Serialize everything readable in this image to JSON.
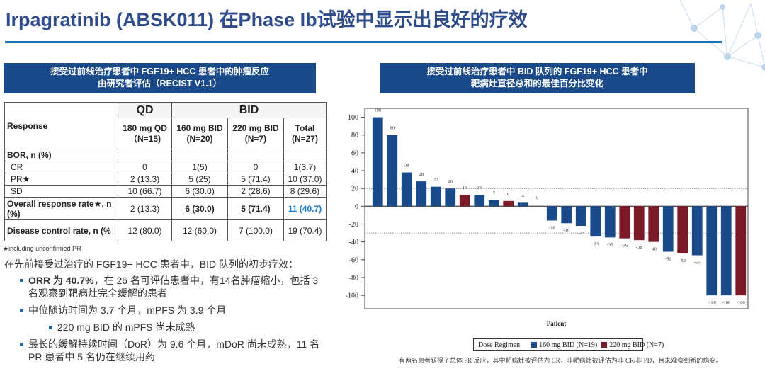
{
  "title": "Irpagratinib (ABSK011) 在Phase Ib试验中显示出良好的疗效",
  "left_panel": {
    "header_line1": "接受过前线治疗患者中 FGF19+ HCC 患者中的肿瘤反应",
    "header_line2": "由研究者评估（RECIST V1.1）",
    "table": {
      "response_label": "Response",
      "group_qd": "QD",
      "group_bid": "BID",
      "columns": [
        {
          "line1": "180 mg QD",
          "line2": "（N=15)"
        },
        {
          "line1": "160 mg BID",
          "line2": "(N=20)"
        },
        {
          "line1": "220 mg BID",
          "line2": "(N=7)"
        },
        {
          "line1": "Total",
          "line2": "(N=27)"
        }
      ],
      "bor_label": "BOR, n (%)",
      "rows": [
        {
          "label": "CR",
          "values": [
            "0",
            "1(5)",
            "0",
            "1(3.7)"
          ]
        },
        {
          "label": "PR★",
          "values": [
            "2 (13.3)",
            "5 (25)",
            "5 (71.4)",
            "10 (37.0)"
          ]
        },
        {
          "label": "SD",
          "values": [
            "10 (66.7)",
            "6  (30.0)",
            "2 (28.6)",
            "8 (29.6)"
          ]
        }
      ],
      "orr": {
        "label": "Overall response rate★, n (%)",
        "values": [
          "2 (13.3)",
          "6 (30.0)",
          "5 (71.4)",
          "11 (40.7)"
        ]
      },
      "dcr": {
        "label": "Disease control rate, n (%",
        "values": [
          "12 (80.0)",
          "12 (60.0)",
          "7 (100.0)",
          "19  (70.4)"
        ]
      }
    },
    "footnote": "★including  unconfirmed PR",
    "summary_lead": "在先前接受过治疗的 FGF19+ HCC 患者中，BID 队列的初步疗效：",
    "bullets": [
      {
        "bold": "ORR 为 40.7%",
        "text": "，在 26 名可评估患者中，有14名肿瘤缩小，包括 3 名观察到靶病灶完全缓解的患者"
      },
      {
        "bold": "",
        "text": "中位随访时间为 3.7 个月，mPFS 为 3.9 个月"
      },
      {
        "bold": "",
        "text": "220 mg BID 的 mPFS 尚未成熟"
      },
      {
        "bold": "",
        "text": "最长的缓解持续时间（DoR）为 9.6 个月，mDoR 尚未成熟，11 名PR 患者中 5 名仍在继续用药"
      }
    ]
  },
  "right_panel": {
    "header_line1": "接受过前线治疗患者中 BID 队列的 FGF19+ HCC 患者中",
    "header_line2": "靶病灶直径总和的最佳百分比变化",
    "legend_title": "Dose Regimen",
    "note": "有两名患者获得了总体 PR 反应，其中靶病灶被评估为 CR，非靶病灶被评估为非 CR/非 PD，且未观察到新的病变。"
  },
  "chart_data": {
    "type": "bar",
    "title": "接受过前线治疗患者中 BID 队列的 FGF19+ HCC 患者中 靶病灶直径总和的最佳百分比变化",
    "xlabel": "Patient",
    "ylabel": "",
    "ylim": [
      -115,
      110
    ],
    "yticks": [
      100,
      80,
      60,
      40,
      20,
      0,
      -20,
      -40,
      -60,
      -80,
      -100
    ],
    "reference_lines": [
      20,
      -30
    ],
    "legend": "bottom",
    "series": [
      {
        "name": "160 mg BID (N=19)",
        "color": "#1b4a8a"
      },
      {
        "name": "220 mg BID (N=7)",
        "color": "#7a1a28"
      }
    ],
    "values": [
      100,
      80,
      38,
      28,
      22,
      20,
      13,
      13,
      7,
      6,
      4,
      0,
      -16,
      -19,
      -22,
      -34,
      -35,
      -36,
      -38,
      -40,
      -51,
      -53,
      -55,
      -100,
      -100,
      -100
    ],
    "groups": [
      "160 mg BID (N=19)",
      "160 mg BID (N=19)",
      "160 mg BID (N=19)",
      "160 mg BID (N=19)",
      "160 mg BID (N=19)",
      "160 mg BID (N=19)",
      "220 mg BID (N=7)",
      "160 mg BID (N=19)",
      "160 mg BID (N=19)",
      "220 mg BID (N=7)",
      "160 mg BID (N=19)",
      "160 mg BID (N=19)",
      "160 mg BID (N=19)",
      "160 mg BID (N=19)",
      "160 mg BID (N=19)",
      "160 mg BID (N=19)",
      "160 mg BID (N=19)",
      "220 mg BID (N=7)",
      "220 mg BID (N=7)",
      "220 mg BID (N=7)",
      "160 mg BID (N=19)",
      "220 mg BID (N=7)",
      "160 mg BID (N=19)",
      "160 mg BID (N=19)",
      "160 mg BID (N=19)",
      "220 mg BID (N=7)"
    ]
  }
}
